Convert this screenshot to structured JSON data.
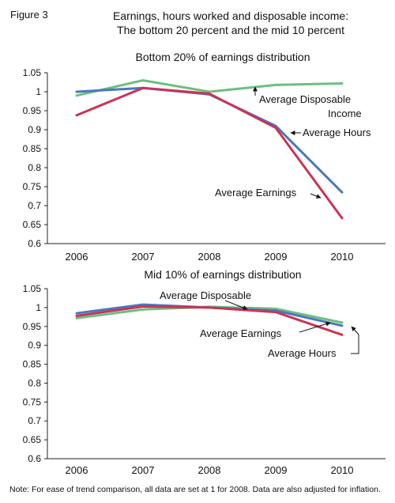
{
  "figure": {
    "label": "Figure 3",
    "title_line1": "Earnings, hours worked and disposable income:",
    "title_line2": "The bottom 20 percent and the mid 10 percent",
    "note": "Note: For ease of trend comparison, all data are set at 1 for 2008. Data are also adjusted for inflation."
  },
  "chart_data": [
    {
      "type": "line",
      "title": "Bottom 20% of earnings distribution",
      "categories": [
        "2006",
        "2007",
        "2008",
        "2009",
        "2010"
      ],
      "ylim": [
        0.6,
        1.05
      ],
      "yticks": [
        "0.6",
        "0.65",
        "0.7",
        "0.75",
        "0.8",
        "0.85",
        "0.9",
        "0.95",
        "1",
        "1.05"
      ],
      "grid": false,
      "series": [
        {
          "name": "Average Disposable Income",
          "color": "#6cbf7f",
          "values": [
            0.99,
            1.03,
            1.0,
            1.018,
            1.022
          ]
        },
        {
          "name": "Average Hours",
          "color": "#4878c0",
          "values": [
            1.0,
            1.01,
            0.993,
            0.91,
            0.735
          ]
        },
        {
          "name": "Average Earnings",
          "color": "#cc3355",
          "values": [
            0.938,
            1.01,
            0.995,
            0.905,
            0.667
          ]
        }
      ],
      "annotations": [
        {
          "lines": [
            "Average Disposable",
            "Income"
          ]
        },
        {
          "lines": [
            "Average Hours"
          ]
        },
        {
          "lines": [
            "Average Earnings"
          ]
        }
      ]
    },
    {
      "type": "line",
      "title": "Mid 10% of earnings distribution",
      "categories": [
        "2006",
        "2007",
        "2008",
        "2009",
        "2010"
      ],
      "ylim": [
        0.6,
        1.05
      ],
      "yticks": [
        "0.6",
        "0.65",
        "0.7",
        "0.75",
        "0.8",
        "0.85",
        "0.9",
        "0.95",
        "1",
        "1.05"
      ],
      "grid": false,
      "series": [
        {
          "name": "Average Disposable",
          "color": "#6cbf7f",
          "values": [
            0.972,
            0.995,
            1.002,
            0.997,
            0.96
          ]
        },
        {
          "name": "Average Hours",
          "color": "#4878c0",
          "values": [
            0.985,
            1.008,
            1.0,
            0.992,
            0.952
          ]
        },
        {
          "name": "Average Earnings",
          "color": "#cc3355",
          "values": [
            0.978,
            1.003,
            1.0,
            0.988,
            0.928
          ]
        }
      ],
      "annotations": [
        {
          "lines": [
            "Average Disposable"
          ]
        },
        {
          "lines": [
            "Average Hours"
          ]
        },
        {
          "lines": [
            "Average Earnings"
          ]
        }
      ]
    }
  ]
}
